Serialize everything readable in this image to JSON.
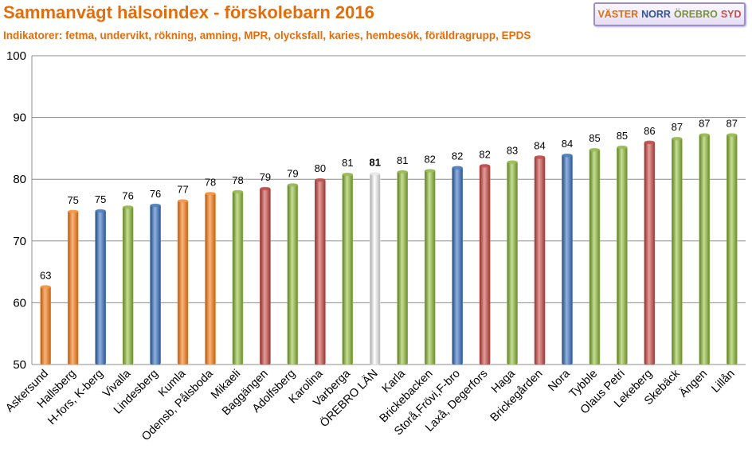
{
  "title": "Sammanvägt hälsoindex - förskolebarn 2016",
  "subtitle": "Indikatorer: fetma, undervikt, rökning, amning, MPR, olycksfall,  karies, hembesök, föräldragrupp, EPDS",
  "legend": [
    {
      "label": "VÄSTER",
      "color": "#e46c0a"
    },
    {
      "label": "NORR",
      "color": "#2f5597"
    },
    {
      "label": "ÖREBRO",
      "color": "#77933c"
    },
    {
      "label": "SYD",
      "color": "#c0504d"
    }
  ],
  "colors": {
    "orange": "#f79646",
    "blue": "#4f81bd",
    "green": "#9bbb59",
    "red": "#c0504d",
    "white": "#e8e8e8"
  },
  "chart_data": {
    "type": "bar",
    "title": "Sammanvägt hälsoindex - förskolebarn 2016",
    "xlabel": "",
    "ylabel": "",
    "ylim": [
      50,
      100
    ],
    "yticks": [
      50,
      60,
      70,
      80,
      90,
      100
    ],
    "grid": true,
    "categories": [
      "Askersund",
      "Hallsberg",
      "H-fors, K-berg",
      "Vivalla",
      "Lindesberg",
      "Kumla",
      "Odensb, Pålsboda",
      "Mikaeli",
      "Baggängen",
      "Adolfsberg",
      "Karolina",
      "Varberga",
      "ÖREBRO LÄN",
      "Karla",
      "Brickebacken",
      "Storå,Frövi,F-bro",
      "Laxå, Degerfors",
      "Haga",
      "Brickegården",
      "Nora",
      "Tybble",
      "Olaus Petri",
      "Lekeberg",
      "Skebäck",
      "Ängen",
      "Lillån"
    ],
    "values": [
      62.7,
      74.9,
      75.0,
      75.6,
      75.9,
      76.6,
      77.8,
      78.1,
      78.6,
      79.2,
      80.0,
      80.9,
      81.0,
      81.3,
      81.5,
      82.0,
      82.3,
      82.9,
      83.7,
      84.0,
      84.9,
      85.3,
      86.1,
      86.7,
      87.3,
      87.3
    ],
    "labels": [
      "63",
      "75",
      "75",
      "76",
      "76",
      "77",
      "78",
      "78",
      "79",
      "79",
      "80",
      "81",
      "81",
      "81",
      "82",
      "82",
      "82",
      "83",
      "84",
      "84",
      "85",
      "85",
      "86",
      "87",
      "87",
      "87"
    ],
    "bar_colors": [
      "orange",
      "orange",
      "blue",
      "green",
      "blue",
      "orange",
      "orange",
      "green",
      "red",
      "green",
      "red",
      "green",
      "white",
      "green",
      "green",
      "blue",
      "red",
      "green",
      "red",
      "blue",
      "green",
      "green",
      "red",
      "green",
      "green",
      "green"
    ],
    "highlight": "ÖREBRO LÄN"
  }
}
